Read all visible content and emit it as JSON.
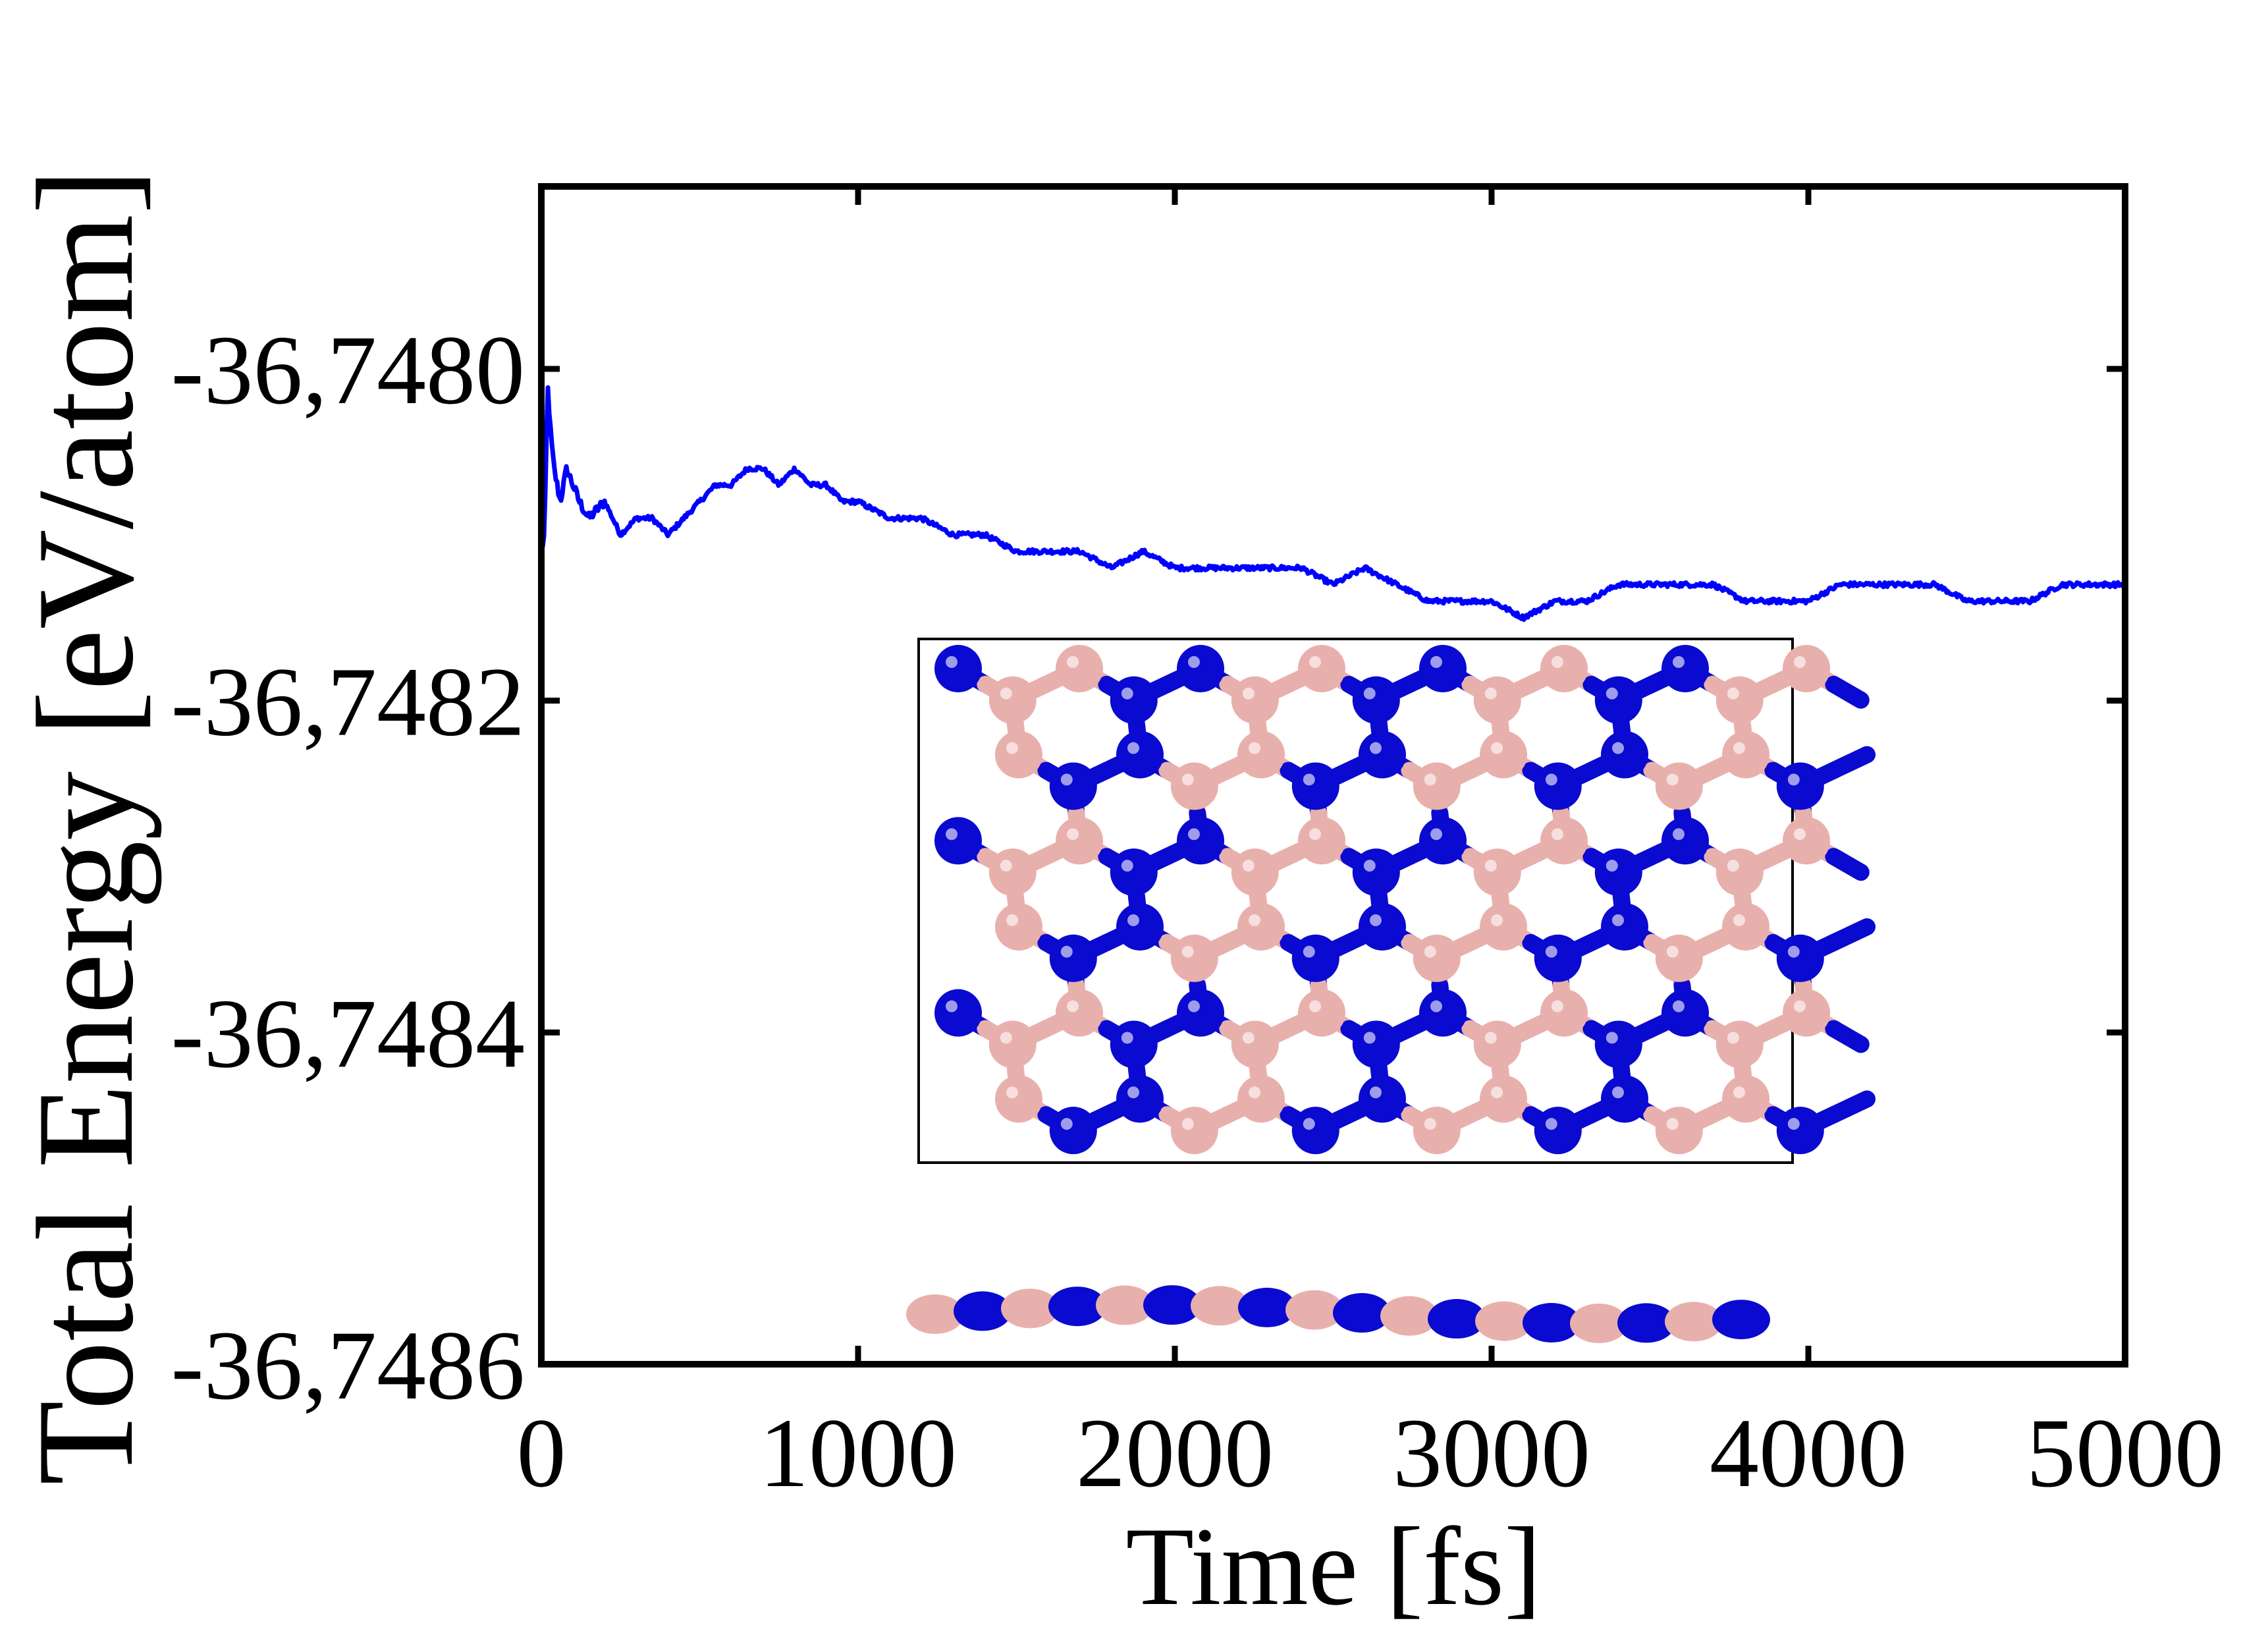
{
  "chart_data": {
    "type": "line",
    "xlabel": "Time [fs]",
    "ylabel": "Total Energy [eV/atom]",
    "xlim": [
      0,
      5000
    ],
    "ylim": [
      -36.7486,
      -36.74789
    ],
    "x_ticks": [
      0,
      1000,
      2000,
      3000,
      4000,
      5000
    ],
    "x_tick_labels": [
      "0",
      "1000",
      "2000",
      "3000",
      "4000",
      "5000"
    ],
    "y_ticks": [
      -36.7486,
      -36.7484,
      -36.7482,
      -36.748
    ],
    "y_tick_labels": [
      "-36,7486",
      "-36,7484",
      "-36,7482",
      "-36,7480"
    ],
    "grid": false,
    "series": [
      {
        "color": "#0000ff",
        "x": [
          0,
          10,
          20,
          30,
          40,
          60,
          80,
          100,
          120,
          150,
          200,
          250,
          300,
          350,
          400,
          450,
          500,
          550,
          600,
          650,
          700,
          750,
          800,
          850,
          900,
          950,
          1000,
          1100,
          1200,
          1300,
          1400,
          1500,
          1600,
          1700,
          1800,
          1900,
          2000,
          2100,
          2200,
          2300,
          2400,
          2500,
          2600,
          2700,
          2800,
          2900,
          3000,
          3100,
          3200,
          3300,
          3400,
          3500,
          3600,
          3700,
          3800,
          3900,
          4000,
          4100,
          4200,
          4300,
          4400,
          4500,
          4600,
          4700,
          4800,
          4900,
          5000
        ],
        "values": [
          -36.74811,
          -36.7481,
          -36.74801,
          -36.74804,
          -36.74806,
          -36.74808,
          -36.74806,
          -36.74807,
          -36.74808,
          -36.74809,
          -36.74808,
          -36.7481,
          -36.74809,
          -36.74809,
          -36.7481,
          -36.74809,
          -36.74808,
          -36.74807,
          -36.74807,
          -36.74806,
          -36.74806,
          -36.74807,
          -36.74806,
          -36.74807,
          -36.74807,
          -36.74808,
          -36.74808,
          -36.74809,
          -36.74809,
          -36.7481,
          -36.7481,
          -36.74811,
          -36.74811,
          -36.74811,
          -36.74812,
          -36.74811,
          -36.74812,
          -36.74812,
          -36.74812,
          -36.74812,
          -36.74812,
          -36.74813,
          -36.74812,
          -36.74813,
          -36.74814,
          -36.74814,
          -36.74814,
          -36.74815,
          -36.74814,
          -36.74814,
          -36.74813,
          -36.74813,
          -36.74813,
          -36.74813,
          -36.74814,
          -36.74814,
          -36.74814,
          -36.74813,
          -36.74813,
          -36.74813,
          -36.74813,
          -36.74814,
          -36.74814,
          -36.74814,
          -36.74813,
          -36.74813,
          -36.74813
        ]
      }
    ]
  },
  "inset": {
    "atom_colors": {
      "dark": "#0a0ad0",
      "light": "#e8b0ac"
    }
  }
}
